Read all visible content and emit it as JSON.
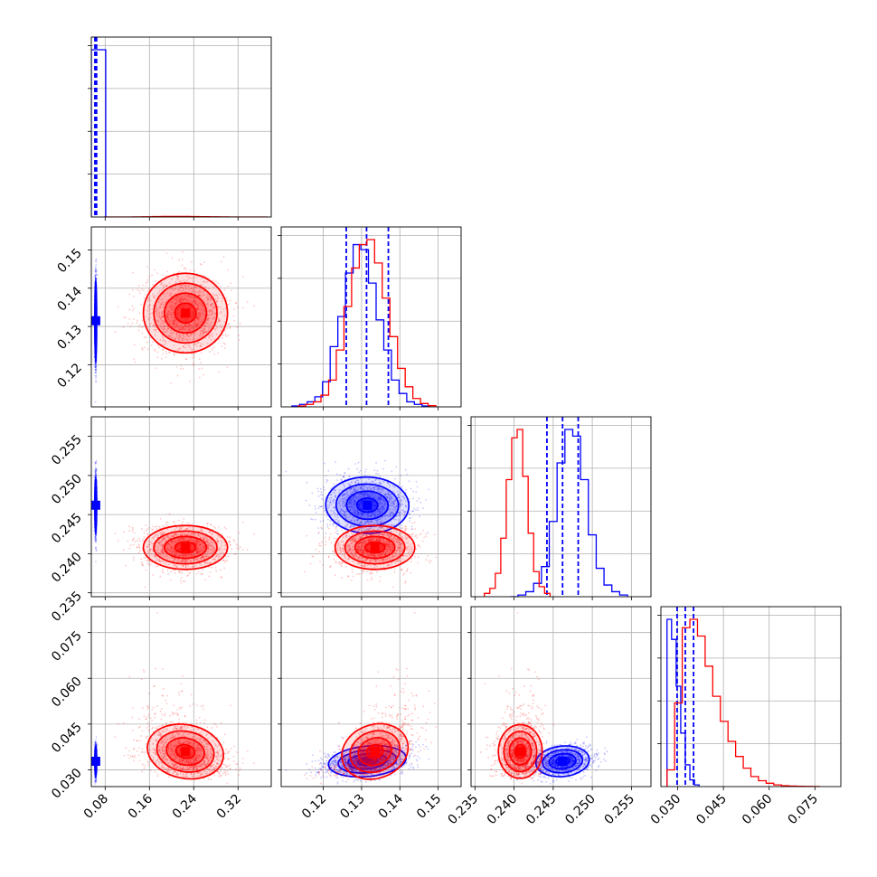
{
  "colors": {
    "blue": "#0000ff",
    "red": "#ff0000"
  },
  "chart_data": {
    "type": "corner",
    "title": "",
    "parameters": [
      {
        "range": [
          0.055,
          0.38
        ],
        "ticks": [
          0.08,
          0.16,
          0.24,
          0.32
        ],
        "tick_labels": [
          "0.08",
          "0.16",
          "0.24",
          "0.32"
        ]
      },
      {
        "range": [
          0.109,
          0.156
        ],
        "ticks": [
          0.12,
          0.13,
          0.14,
          0.15
        ],
        "tick_labels": [
          "0.12",
          "0.13",
          "0.14",
          "0.15"
        ]
      },
      {
        "range": [
          0.2345,
          0.2575
        ],
        "ticks": [
          0.235,
          0.24,
          0.245,
          0.25,
          0.255
        ],
        "tick_labels": [
          "0.235",
          "0.240",
          "0.245",
          "0.250",
          "0.255"
        ]
      },
      {
        "range": [
          0.0245,
          0.0835
        ],
        "ticks": [
          0.03,
          0.045,
          0.06,
          0.075
        ],
        "tick_labels": [
          "0.030",
          "0.045",
          "0.060",
          "0.075"
        ]
      }
    ],
    "series": [
      {
        "color": "blue",
        "mean": [
          0.063,
          0.1315,
          0.2462,
          0.0328
        ],
        "sd": [
          0.0008,
          0.0055,
          0.0018,
          0.0025
        ],
        "quantiles": [
          [
            0.0615,
            0.063,
            0.0645
          ],
          [
            0.126,
            0.1313,
            0.137
          ],
          [
            0.2442,
            0.2462,
            0.2482
          ],
          [
            0.0298,
            0.0325,
            0.0352
          ]
        ],
        "correlations": {
          "1-2": -0.05,
          "1-3": 0.3,
          "2-3": 0.2
        },
        "hist": [
          {
            "values": [
              30000
            ],
            "range": [
              0.055,
              0.081
            ]
          },
          {
            "values": [
              0.5,
              1.5,
              3,
              6,
              15,
              36,
              54,
              80,
              97,
              94,
              74,
              52,
              34,
              16,
              8,
              3,
              1.5,
              0.5
            ],
            "range": [
              0.1118,
              0.1478
            ]
          },
          {
            "values": [
              0,
              1,
              3,
              8,
              18,
              45,
              80,
              100,
              96,
              70,
              37,
              17,
              7,
              3,
              1
            ],
            "range": [
              0.2395,
              0.2545
            ]
          },
          {
            "values": [
              100,
              88,
              60,
              32,
              13,
              4,
              1
            ],
            "range": [
              0.0265,
              0.037
            ]
          }
        ]
      },
      {
        "color": "red",
        "mean": [
          0.225,
          0.1335,
          0.2408,
          0.036
        ],
        "sd": [
          0.038,
          0.0052,
          0.0014,
          0.0055
        ],
        "correlations": {
          "0-3": -0.35,
          "1-3": 0.6
        },
        "hist": [
          {
            "values": [
              0,
              1,
              3,
              13,
              43,
              75,
              97,
              100,
              92,
              73,
              48,
              28,
              15,
              6,
              3,
              1,
              0.3
            ],
            "range": [
              0.0775,
              0.3725
            ]
          },
          {
            "values": [
              0.5,
              1.5,
              3,
              7,
              16,
              34,
              60,
              83,
              97,
              100,
              86,
              65,
              42,
              23,
              12,
              5,
              2,
              0.7
            ],
            "range": [
              0.1134,
              0.1494
            ]
          },
          {
            "values": [
              2,
              5,
              14,
              35,
              70,
              95,
              100,
              72,
              38,
              15,
              6,
              2
            ],
            "range": [
              0.2362,
              0.2446
            ]
          },
          {
            "values": [
              10,
              50,
              95,
              100,
              90,
              72,
              54,
              39,
              27,
              18,
              11,
              6,
              3.5,
              2,
              1,
              0.5,
              0.3,
              0.2,
              0.1,
              0.05
            ],
            "range": [
              0.0265,
              0.0765
            ]
          }
        ]
      }
    ]
  }
}
